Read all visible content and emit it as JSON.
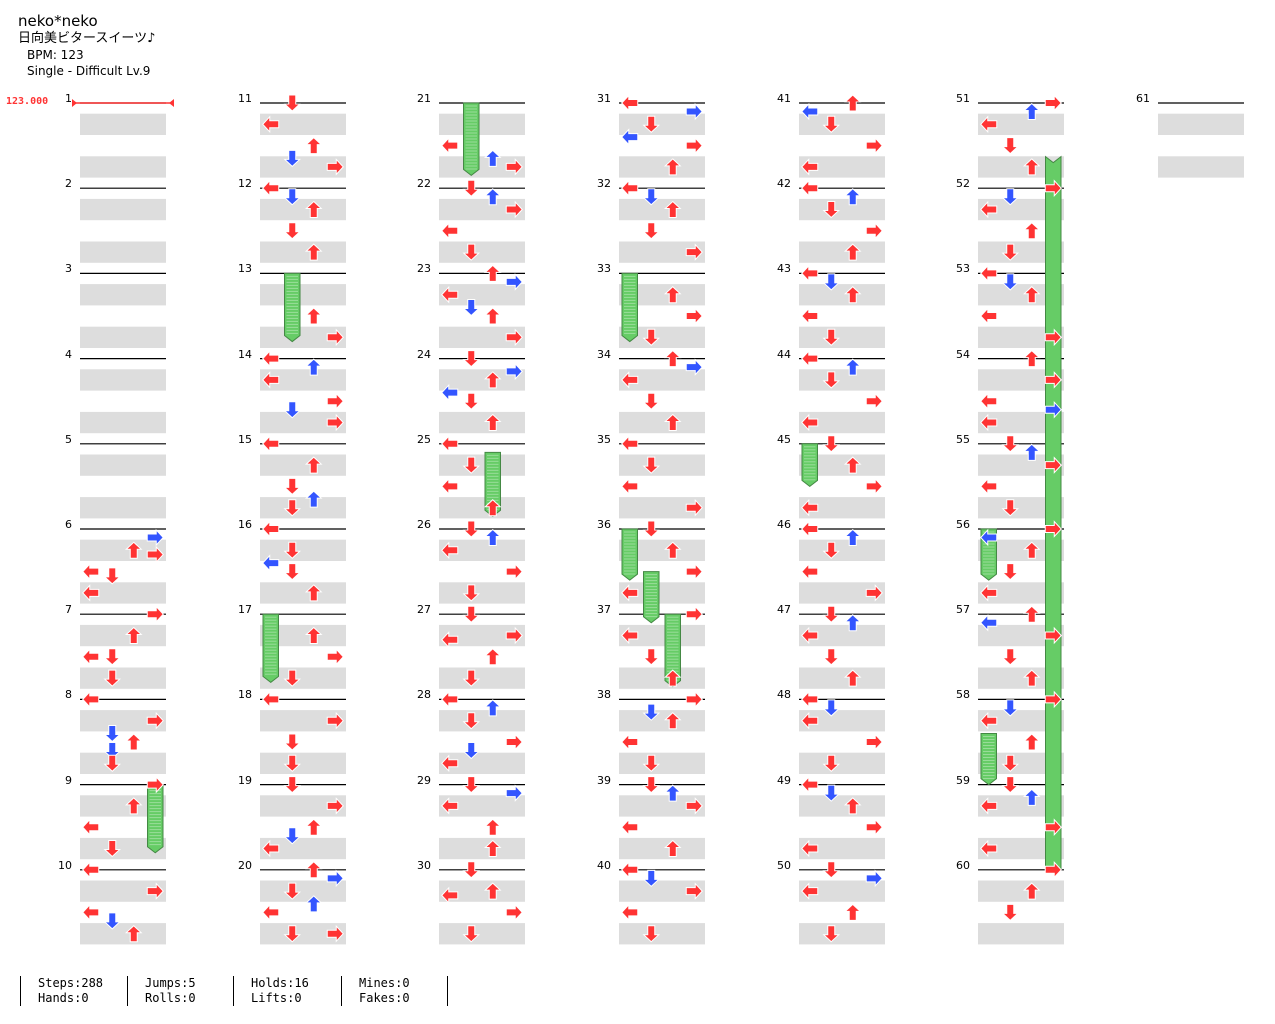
{
  "header": {
    "artist": "neko*neko",
    "title": "日向美ビタースイーツ♪",
    "bpm_text": "BPM: 123",
    "difficulty_text": "Single - Difficult Lv.9"
  },
  "bpm_marker": {
    "label": "123.000",
    "measure": 1
  },
  "measures": {
    "first": 1,
    "last": 61,
    "per_column": 10
  },
  "colors": {
    "quarter": "#ff3333",
    "eighth": "#3355ff",
    "hold": "#66cc66",
    "band": "#dddddd"
  },
  "stats": [
    {
      "top": "Steps:288",
      "bottom": "Hands:0"
    },
    {
      "top": "Jumps:5",
      "bottom": "Rolls:0"
    },
    {
      "top": "Holds:16",
      "bottom": "Lifts:0"
    },
    {
      "top": "Mines:0",
      "bottom": "Fakes:0"
    }
  ],
  "notes": [
    [
      6,
      0.1,
      3
    ],
    [
      6,
      0.25,
      2
    ],
    [
      6,
      0.3,
      3
    ],
    [
      6,
      0.5,
      0
    ],
    [
      6,
      0.55,
      1
    ],
    [
      6,
      0.75,
      0
    ],
    [
      7,
      0,
      3
    ],
    [
      7,
      0.25,
      2
    ],
    [
      7,
      0.5,
      1
    ],
    [
      7,
      0.5,
      0
    ],
    [
      7,
      0.75,
      1
    ],
    [
      8,
      0,
      0
    ],
    [
      8,
      0.25,
      3
    ],
    [
      8,
      0.4,
      1
    ],
    [
      8,
      0.5,
      2
    ],
    [
      8,
      0.6,
      1
    ],
    [
      8,
      0.75,
      1
    ],
    [
      9,
      0,
      3
    ],
    [
      9,
      0.25,
      2
    ],
    [
      9,
      0.5,
      0
    ],
    [
      9,
      0.75,
      1
    ],
    [
      10,
      0,
      0
    ],
    [
      10,
      0.25,
      3
    ],
    [
      10,
      0.5,
      0
    ],
    [
      10,
      0.6,
      1
    ],
    [
      10,
      0.75,
      2
    ],
    [
      11,
      0,
      1
    ],
    [
      11,
      0.25,
      0
    ],
    [
      11,
      0.5,
      2
    ],
    [
      11,
      0.65,
      1
    ],
    [
      11,
      0.75,
      3
    ],
    [
      12,
      0,
      0
    ],
    [
      12,
      0.1,
      1
    ],
    [
      12,
      0.25,
      2
    ],
    [
      12,
      0.5,
      1
    ],
    [
      12,
      0.75,
      2
    ],
    [
      13,
      0.5,
      2
    ],
    [
      13,
      0.75,
      3
    ],
    [
      14,
      0,
      0
    ],
    [
      14,
      0.1,
      2
    ],
    [
      14,
      0.25,
      0
    ],
    [
      14,
      0.5,
      3
    ],
    [
      14,
      0.6,
      1
    ],
    [
      14,
      0.75,
      3
    ],
    [
      15,
      0,
      0
    ],
    [
      15,
      0.25,
      2
    ],
    [
      15,
      0.5,
      1
    ],
    [
      15,
      0.65,
      2
    ],
    [
      15,
      0.75,
      1
    ],
    [
      16,
      0,
      0
    ],
    [
      16,
      0.25,
      1
    ],
    [
      16,
      0.4,
      0
    ],
    [
      16,
      0.5,
      1
    ],
    [
      16,
      0.75,
      2
    ],
    [
      17,
      0.25,
      2
    ],
    [
      17,
      0.5,
      3
    ],
    [
      17,
      0.75,
      1
    ],
    [
      18,
      0,
      0
    ],
    [
      18,
      0.25,
      3
    ],
    [
      18,
      0.5,
      1
    ],
    [
      18,
      0.75,
      1
    ],
    [
      19,
      0,
      1
    ],
    [
      19,
      0.25,
      3
    ],
    [
      19,
      0.5,
      2
    ],
    [
      19,
      0.6,
      1
    ],
    [
      19,
      0.75,
      0
    ],
    [
      20,
      0,
      2
    ],
    [
      20,
      0.1,
      3
    ],
    [
      20,
      0.25,
      1
    ],
    [
      20,
      0.4,
      2
    ],
    [
      20,
      0.5,
      0
    ],
    [
      20,
      0.75,
      1
    ],
    [
      20,
      0.75,
      3
    ],
    [
      21,
      0.5,
      0
    ],
    [
      21,
      0.65,
      2
    ],
    [
      21,
      0.75,
      3
    ],
    [
      22,
      0,
      1
    ],
    [
      22,
      0.1,
      2
    ],
    [
      22,
      0.25,
      3
    ],
    [
      22,
      0.5,
      0
    ],
    [
      22,
      0.75,
      1
    ],
    [
      23,
      0,
      2
    ],
    [
      23,
      0.1,
      3
    ],
    [
      23,
      0.25,
      0
    ],
    [
      23,
      0.4,
      1
    ],
    [
      23,
      0.5,
      2
    ],
    [
      23,
      0.75,
      3
    ],
    [
      24,
      0,
      1
    ],
    [
      24,
      0.15,
      3
    ],
    [
      24,
      0.25,
      2
    ],
    [
      24,
      0.4,
      0
    ],
    [
      24,
      0.5,
      1
    ],
    [
      24,
      0.75,
      2
    ],
    [
      25,
      0,
      0
    ],
    [
      25,
      0.25,
      1
    ],
    [
      25,
      0.5,
      0
    ],
    [
      25,
      0.75,
      2
    ],
    [
      26,
      0,
      1
    ],
    [
      26,
      0.1,
      2
    ],
    [
      26,
      0.25,
      0
    ],
    [
      26,
      0.5,
      3
    ],
    [
      26,
      0.75,
      1
    ],
    [
      27,
      0,
      1
    ],
    [
      27,
      0.25,
      3
    ],
    [
      27,
      0.3,
      0
    ],
    [
      27,
      0.5,
      2
    ],
    [
      27,
      0.75,
      1
    ],
    [
      28,
      0,
      0
    ],
    [
      28,
      0.1,
      2
    ],
    [
      28,
      0.25,
      1
    ],
    [
      28,
      0.5,
      3
    ],
    [
      28,
      0.6,
      1
    ],
    [
      28,
      0.75,
      0
    ],
    [
      29,
      0,
      1
    ],
    [
      29,
      0.1,
      3
    ],
    [
      29,
      0.25,
      0
    ],
    [
      29,
      0.5,
      2
    ],
    [
      29,
      0.75,
      2
    ],
    [
      30,
      0,
      1
    ],
    [
      30,
      0.25,
      2
    ],
    [
      30,
      0.3,
      0
    ],
    [
      30,
      0.5,
      3
    ],
    [
      30,
      0.75,
      1
    ],
    [
      31,
      0,
      0
    ],
    [
      31,
      0.1,
      3
    ],
    [
      31,
      0.25,
      1
    ],
    [
      31,
      0.4,
      0
    ],
    [
      31,
      0.5,
      3
    ],
    [
      31,
      0.75,
      2
    ],
    [
      32,
      0,
      0
    ],
    [
      32,
      0.1,
      1
    ],
    [
      32,
      0.25,
      2
    ],
    [
      32,
      0.5,
      1
    ],
    [
      32,
      0.75,
      3
    ],
    [
      33,
      0.25,
      2
    ],
    [
      33,
      0.5,
      3
    ],
    [
      33,
      0.75,
      1
    ],
    [
      34,
      0,
      2
    ],
    [
      34,
      0.1,
      3
    ],
    [
      34,
      0.25,
      0
    ],
    [
      34,
      0.5,
      1
    ],
    [
      34,
      0.75,
      2
    ],
    [
      35,
      0,
      0
    ],
    [
      35,
      0.25,
      1
    ],
    [
      35,
      0.5,
      0
    ],
    [
      35,
      0.75,
      3
    ],
    [
      36,
      0,
      1
    ],
    [
      36,
      0.25,
      2
    ],
    [
      36,
      0.5,
      3
    ],
    [
      36,
      0.75,
      0
    ],
    [
      37,
      0,
      3
    ],
    [
      37,
      0.25,
      0
    ],
    [
      37,
      0.5,
      1
    ],
    [
      37,
      0.75,
      2
    ],
    [
      38,
      0,
      3
    ],
    [
      38,
      0.15,
      1
    ],
    [
      38,
      0.25,
      2
    ],
    [
      38,
      0.5,
      0
    ],
    [
      38,
      0.75,
      1
    ],
    [
      39,
      0,
      1
    ],
    [
      39,
      0.1,
      2
    ],
    [
      39,
      0.25,
      3
    ],
    [
      39,
      0.5,
      0
    ],
    [
      39,
      0.75,
      2
    ],
    [
      40,
      0,
      0
    ],
    [
      40,
      0.1,
      1
    ],
    [
      40,
      0.25,
      3
    ],
    [
      40,
      0.5,
      0
    ],
    [
      40,
      0.75,
      1
    ],
    [
      41,
      0,
      2
    ],
    [
      41,
      0.1,
      0
    ],
    [
      41,
      0.25,
      1
    ],
    [
      41,
      0.5,
      3
    ],
    [
      41,
      0.75,
      0
    ],
    [
      42,
      0,
      0
    ],
    [
      42,
      0.1,
      2
    ],
    [
      42,
      0.25,
      1
    ],
    [
      42,
      0.5,
      3
    ],
    [
      42,
      0.75,
      2
    ],
    [
      43,
      0,
      0
    ],
    [
      43,
      0.1,
      1
    ],
    [
      43,
      0.25,
      2
    ],
    [
      43,
      0.5,
      0
    ],
    [
      43,
      0.75,
      1
    ],
    [
      44,
      0,
      0
    ],
    [
      44,
      0.1,
      2
    ],
    [
      44,
      0.25,
      1
    ],
    [
      44,
      0.5,
      3
    ],
    [
      44,
      0.75,
      0
    ],
    [
      45,
      0,
      1
    ],
    [
      45,
      0.25,
      2
    ],
    [
      45,
      0.5,
      3
    ],
    [
      45,
      0.75,
      0
    ],
    [
      46,
      0,
      0
    ],
    [
      46,
      0.1,
      2
    ],
    [
      46,
      0.25,
      1
    ],
    [
      46,
      0.5,
      0
    ],
    [
      46,
      0.75,
      3
    ],
    [
      47,
      0,
      1
    ],
    [
      47,
      0.1,
      2
    ],
    [
      47,
      0.25,
      0
    ],
    [
      47,
      0.5,
      1
    ],
    [
      47,
      0.75,
      2
    ],
    [
      48,
      0,
      0
    ],
    [
      48,
      0.1,
      1
    ],
    [
      48,
      0.25,
      0
    ],
    [
      48,
      0.5,
      3
    ],
    [
      48,
      0.75,
      1
    ],
    [
      49,
      0,
      0
    ],
    [
      49,
      0.1,
      1
    ],
    [
      49,
      0.25,
      2
    ],
    [
      49,
      0.5,
      3
    ],
    [
      49,
      0.75,
      0
    ],
    [
      50,
      0,
      1
    ],
    [
      50,
      0.1,
      3
    ],
    [
      50,
      0.25,
      0
    ],
    [
      50,
      0.5,
      2
    ],
    [
      50,
      0.75,
      1
    ],
    [
      51,
      0,
      3
    ],
    [
      51,
      0.1,
      2
    ],
    [
      51,
      0.25,
      0
    ],
    [
      51,
      0.5,
      1
    ],
    [
      51,
      0.75,
      2
    ],
    [
      52,
      0,
      3
    ],
    [
      52,
      0.1,
      1
    ],
    [
      52,
      0.25,
      0
    ],
    [
      52,
      0.5,
      2
    ],
    [
      52,
      0.75,
      1
    ],
    [
      53,
      0,
      0
    ],
    [
      53,
      0.1,
      1
    ],
    [
      53,
      0.25,
      2
    ],
    [
      53,
      0.5,
      0
    ],
    [
      53,
      0.75,
      3
    ],
    [
      54,
      0,
      2
    ],
    [
      54,
      0.25,
      3
    ],
    [
      54,
      0.5,
      0
    ],
    [
      54,
      0.6,
      3
    ],
    [
      54,
      0.75,
      0
    ],
    [
      55,
      0,
      1
    ],
    [
      55,
      0.1,
      2
    ],
    [
      55,
      0.25,
      3
    ],
    [
      55,
      0.5,
      0
    ],
    [
      55,
      0.75,
      1
    ],
    [
      56,
      0,
      3
    ],
    [
      56,
      0.1,
      0
    ],
    [
      56,
      0.25,
      2
    ],
    [
      56,
      0.5,
      1
    ],
    [
      56,
      0.75,
      0
    ],
    [
      57,
      0,
      2
    ],
    [
      57,
      0.1,
      0
    ],
    [
      57,
      0.25,
      3
    ],
    [
      57,
      0.5,
      1
    ],
    [
      57,
      0.75,
      2
    ],
    [
      58,
      0,
      3
    ],
    [
      58,
      0.1,
      1
    ],
    [
      58,
      0.25,
      0
    ],
    [
      58,
      0.5,
      2
    ],
    [
      58,
      0.75,
      1
    ],
    [
      59,
      0,
      1
    ],
    [
      59,
      0.15,
      2
    ],
    [
      59,
      0.25,
      0
    ],
    [
      59,
      0.5,
      3
    ],
    [
      59,
      0.75,
      0
    ],
    [
      60,
      0,
      3
    ],
    [
      60,
      0.25,
      2
    ],
    [
      60,
      0.5,
      1
    ]
  ],
  "holds": [
    [
      9,
      0,
      9,
      0.8,
      3
    ],
    [
      13,
      0,
      13,
      0.8,
      1
    ],
    [
      17,
      0,
      17,
      0.8,
      0
    ],
    [
      21,
      0,
      21,
      0.85,
      1
    ],
    [
      25,
      0.1,
      25,
      0.85,
      2
    ],
    [
      33,
      0,
      33,
      0.8,
      0
    ],
    [
      36,
      0,
      36,
      0.6,
      0
    ],
    [
      36,
      0.5,
      37,
      0.1,
      1
    ],
    [
      37,
      0,
      37,
      0.85,
      2
    ],
    [
      45,
      0,
      45,
      0.5,
      0
    ],
    [
      53,
      0,
      53,
      0.5,
      3
    ],
    [
      56,
      0,
      56,
      0.6,
      0
    ],
    [
      56,
      0.5,
      57,
      0,
      3
    ],
    [
      58,
      0,
      58,
      0.6,
      3
    ],
    [
      58,
      0.4,
      59,
      0,
      0
    ],
    [
      60,
      0,
      61,
      0.7,
      3
    ]
  ]
}
